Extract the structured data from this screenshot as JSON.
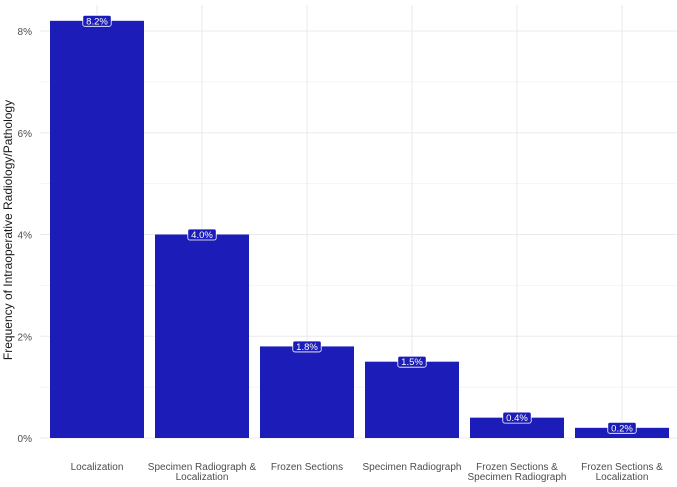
{
  "chart_data": {
    "type": "bar",
    "title": "",
    "xlabel": "",
    "ylabel": "Frequency of Intraoperative Radiology/Pathology",
    "categories": [
      "Localization",
      "Specimen Radiograph & Localization",
      "Frozen Sections",
      "Specimen Radiograph",
      "Frozen Sections & Specimen Radiograph",
      "Frozen Sections & Localization"
    ],
    "category_lines": [
      [
        "Localization"
      ],
      [
        "Specimen Radiograph &",
        "Localization"
      ],
      [
        "Frozen Sections"
      ],
      [
        "Specimen Radiograph"
      ],
      [
        "Frozen Sections &",
        "Specimen Radiograph"
      ],
      [
        "Frozen Sections &",
        "Localization"
      ]
    ],
    "values": [
      8.2,
      4.0,
      1.8,
      1.5,
      0.4,
      0.2
    ],
    "value_labels": [
      "8.2%",
      "4.0%",
      "1.8%",
      "1.5%",
      "0.4%",
      "0.2%"
    ],
    "ylim": [
      0,
      8
    ],
    "yticks": [
      0,
      2,
      4,
      6,
      8
    ],
    "ytick_labels": [
      "0%",
      "2%",
      "4%",
      "6%",
      "8%"
    ],
    "grid": true,
    "legend": "none",
    "colors": {
      "bar": "#1c1cb8",
      "grid": "#ebebeb",
      "axis_text": "#4d4d4d",
      "label_text": "#ffffff",
      "label_box": "#1c1cb8"
    }
  }
}
